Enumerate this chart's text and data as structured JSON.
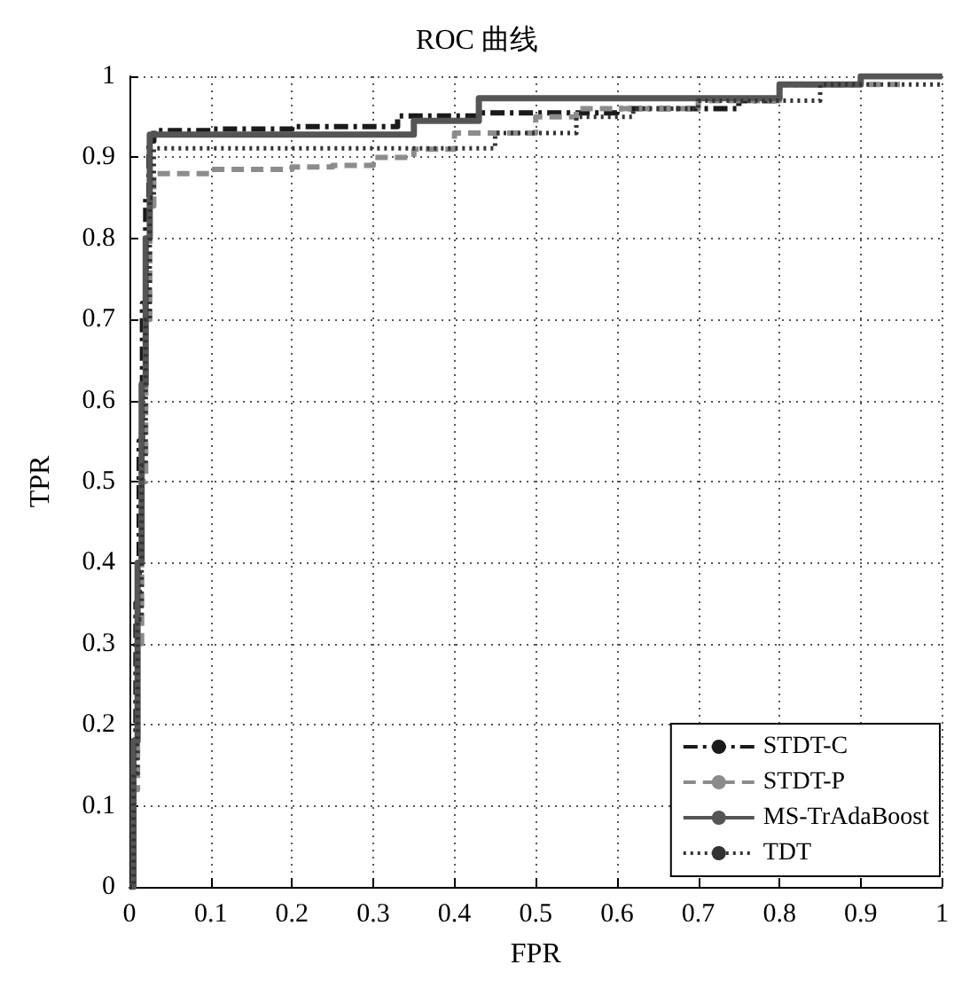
{
  "chart_data": {
    "type": "step",
    "title": "ROC 曲线",
    "xlabel": "FPR",
    "ylabel": "TPR",
    "xlim": [
      0,
      1
    ],
    "ylim": [
      0,
      1
    ],
    "xticks": [
      0,
      0.1,
      0.2,
      0.3,
      0.4,
      0.5,
      0.6,
      0.7,
      0.8,
      0.9,
      1
    ],
    "yticks": [
      0,
      0.1,
      0.2,
      0.3,
      0.4,
      0.5,
      0.6,
      0.7,
      0.8,
      0.9,
      1
    ],
    "grid": true,
    "legend": "bottom right",
    "marker": "none",
    "series": [
      {
        "name": "STDT-C",
        "color": "#1a1a1a",
        "line_style": "dashdot",
        "x": [
          0,
          0.004,
          0.008,
          0.012,
          0.016,
          0.02,
          0.024,
          0.03,
          0.1,
          0.2,
          0.33,
          0.43,
          0.6,
          0.75,
          0.8,
          0.9,
          1
        ],
        "values": [
          0,
          0.15,
          0.35,
          0.55,
          0.72,
          0.85,
          0.92,
          0.933,
          0.935,
          0.938,
          0.951,
          0.955,
          0.96,
          0.97,
          0.99,
          1,
          1
        ]
      },
      {
        "name": "STDT-P",
        "color": "#8c8c8c",
        "line_style": "dashed",
        "x": [
          0,
          0.005,
          0.01,
          0.015,
          0.02,
          0.025,
          0.03,
          0.1,
          0.2,
          0.25,
          0.3,
          0.35,
          0.4,
          0.5,
          0.55,
          0.7,
          0.8,
          0.95,
          1
        ],
        "values": [
          0,
          0.12,
          0.3,
          0.5,
          0.7,
          0.84,
          0.88,
          0.885,
          0.888,
          0.89,
          0.9,
          0.91,
          0.93,
          0.95,
          0.96,
          0.97,
          0.99,
          1,
          1
        ]
      },
      {
        "name": "MS-TrAdaBoost",
        "color": "#555555",
        "line_style": "solid",
        "x": [
          0,
          0.005,
          0.01,
          0.015,
          0.02,
          0.025,
          0.1,
          0.35,
          0.43,
          0.8,
          0.9,
          1
        ],
        "values": [
          0,
          0.18,
          0.4,
          0.62,
          0.8,
          0.928,
          0.928,
          0.945,
          0.973,
          0.99,
          1,
          1
        ]
      },
      {
        "name": "TDT",
        "color": "#333333",
        "line_style": "dotted",
        "x": [
          0,
          0.005,
          0.01,
          0.015,
          0.02,
          0.025,
          0.03,
          0.41,
          0.45,
          0.55,
          0.62,
          0.7,
          0.85,
          1
        ],
        "values": [
          0,
          0.14,
          0.33,
          0.52,
          0.7,
          0.85,
          0.911,
          0.911,
          0.93,
          0.95,
          0.96,
          0.97,
          0.99,
          0.99
        ]
      }
    ]
  }
}
